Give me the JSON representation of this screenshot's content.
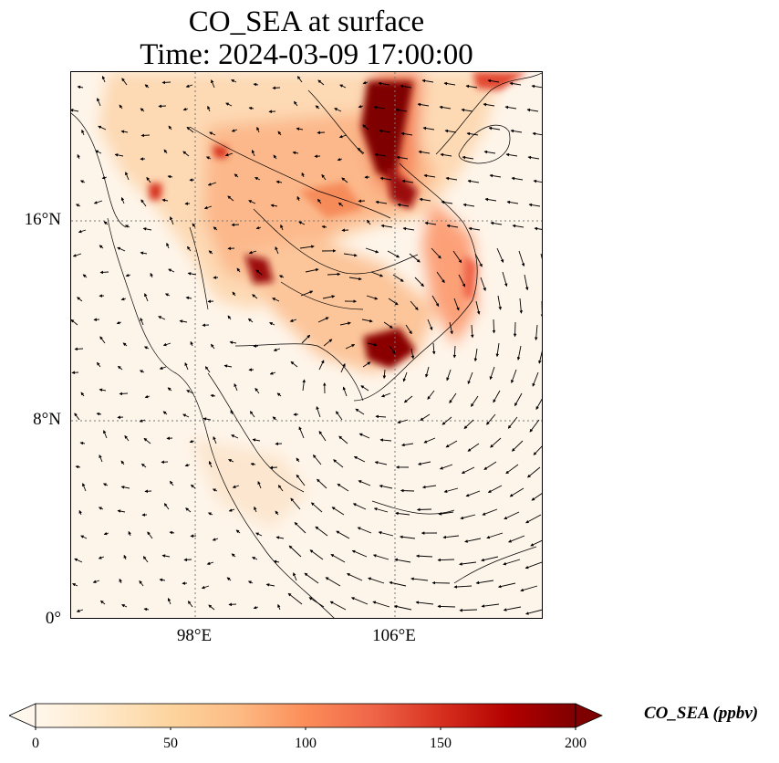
{
  "title": {
    "line1": "CO_SEA at surface",
    "line2": "Time: 2024-03-09 17:00:00"
  },
  "map": {
    "lat_labels": [
      "16°N",
      "8°N",
      "0°"
    ],
    "lon_labels": [
      "98°E",
      "106°E"
    ],
    "colormap": "OrRd"
  },
  "colorbar": {
    "label": "CO_SEA (ppbv)",
    "ticks": [
      "0",
      "50",
      "100",
      "150",
      "200"
    ],
    "min": 0,
    "max": 200,
    "colors": [
      "#fff7ec",
      "#fee8c8",
      "#fdd49e",
      "#fdbb84",
      "#fc8d59",
      "#ef6548",
      "#d7301f",
      "#b30000",
      "#7f0000"
    ]
  }
}
